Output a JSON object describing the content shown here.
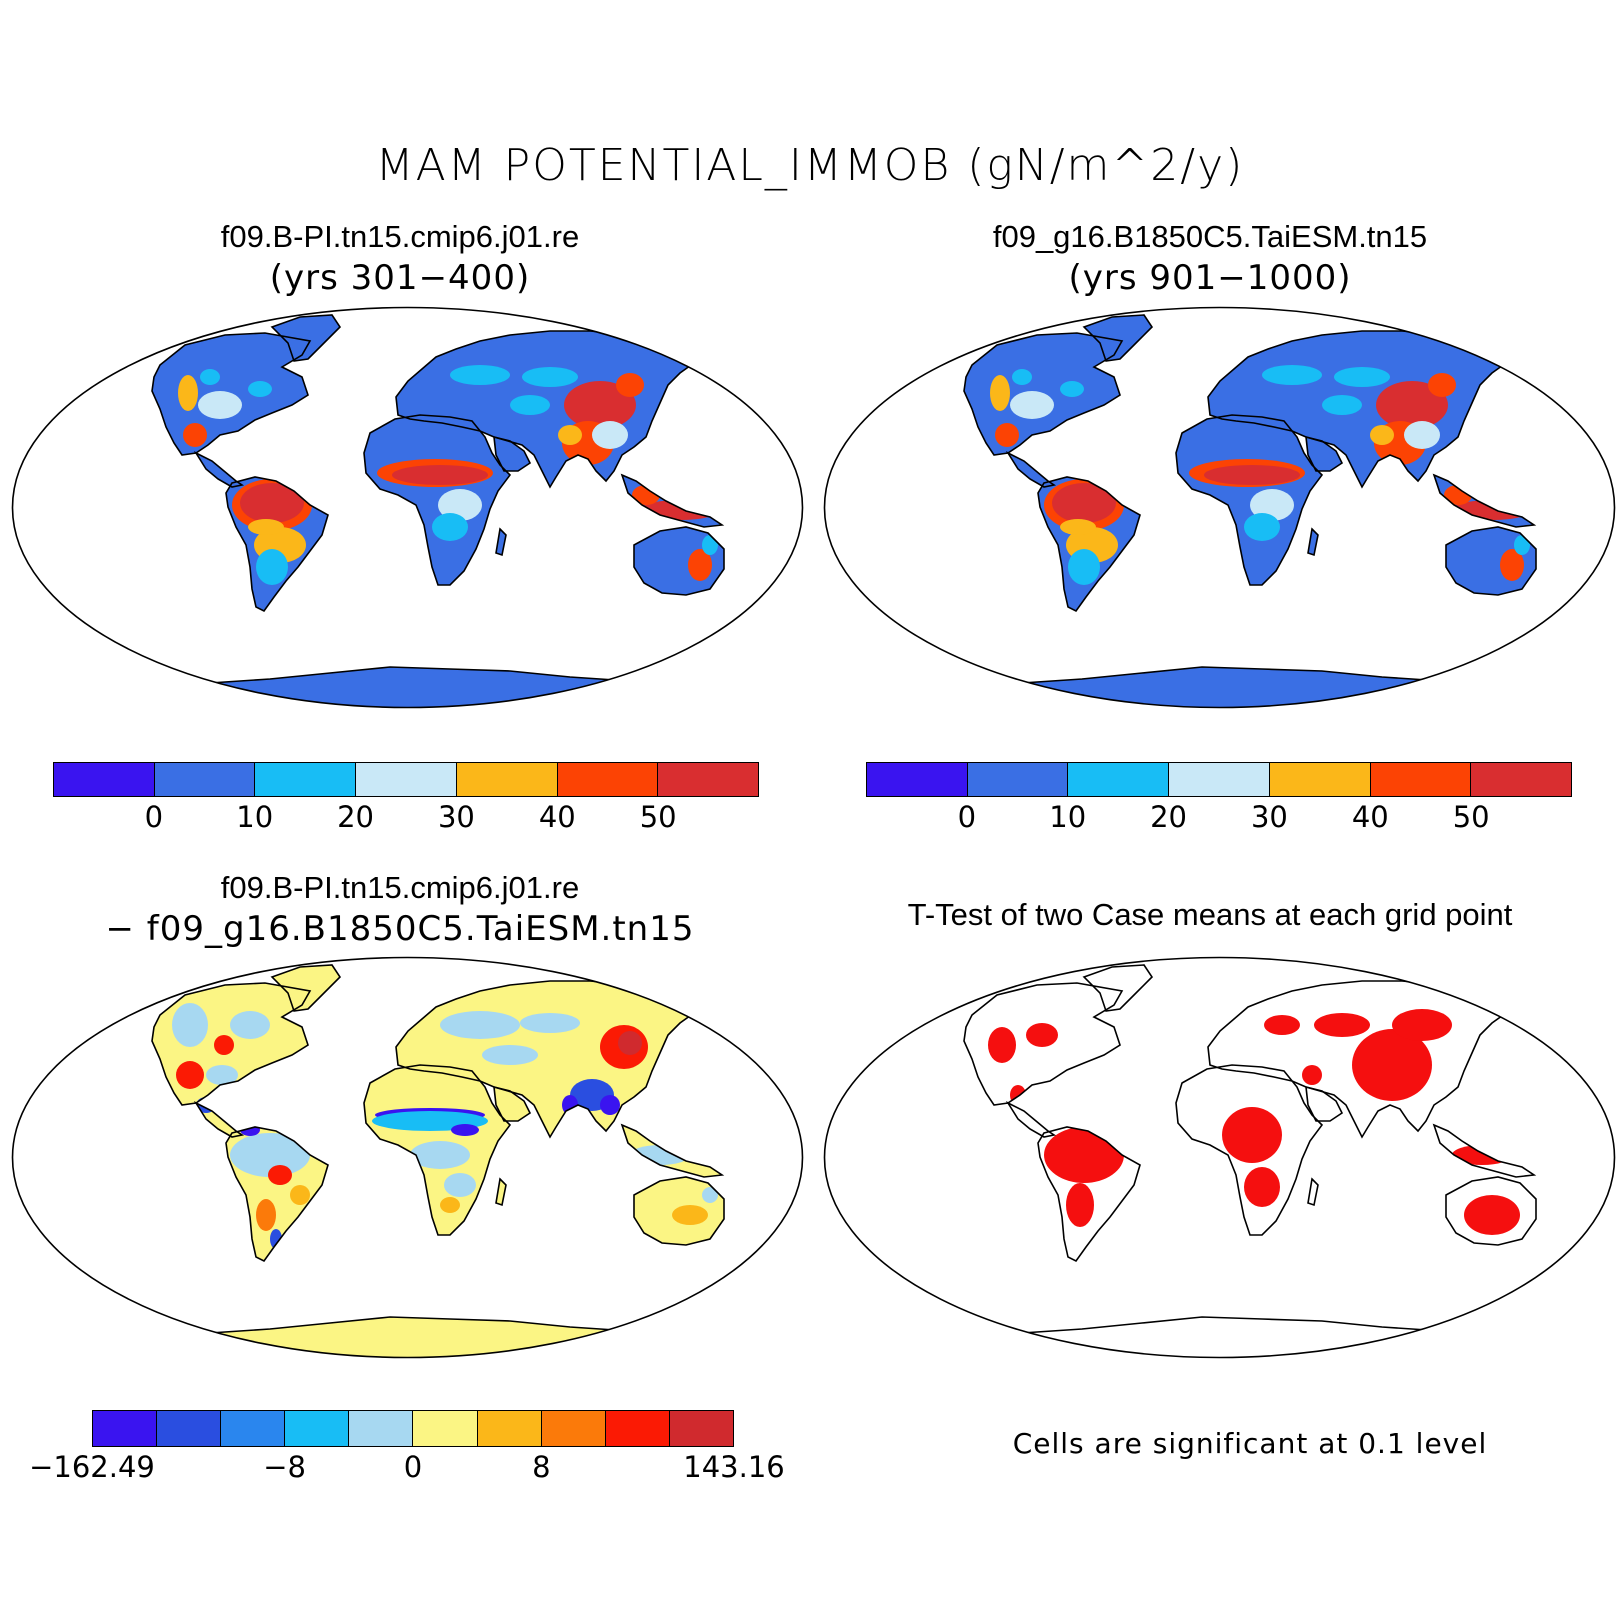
{
  "title": "MAM POTENTIAL_IMMOB (gN/m^2/y)",
  "panels": {
    "top_left": {
      "title": "f09.B-PI.tn15.cmip6.j01.re",
      "subtitle": "(yrs 301−400)"
    },
    "top_right": {
      "title": "f09_g16.B1850C5.TaiESM.tn15",
      "subtitle": "(yrs 901−1000)"
    },
    "bottom_left": {
      "title": "f09.B-PI.tn15.cmip6.j01.re",
      "subtitle": "− f09_g16.B1850C5.TaiESM.tn15"
    },
    "bottom_right": {
      "title": "T-Test of two Case means at each grid point",
      "note": "Cells are significant at 0.1 level"
    }
  },
  "colorbars": {
    "abs": {
      "colors": [
        "#3a14f0",
        "#3a6fe4",
        "#18bdf5",
        "#c9e8f7",
        "#fbb719",
        "#fc4304",
        "#d92e30"
      ],
      "ticks": [
        "0",
        "10",
        "20",
        "30",
        "40",
        "50"
      ]
    },
    "diff": {
      "colors": [
        "#3a14f0",
        "#2a4ee0",
        "#2a86ee",
        "#18bdf5",
        "#a7d8f1",
        "#fbf584",
        "#fbb719",
        "#fb7a0a",
        "#fb1a04",
        "#d02a2e"
      ],
      "ticks": [
        "−162.49",
        "−8",
        "0",
        "8",
        "143.16"
      ]
    }
  },
  "map_colors": {
    "ocean": "#ffffff",
    "land_base": "#3a6fe4",
    "diff_base": "#fbf584",
    "significant": "#f50f0f"
  }
}
